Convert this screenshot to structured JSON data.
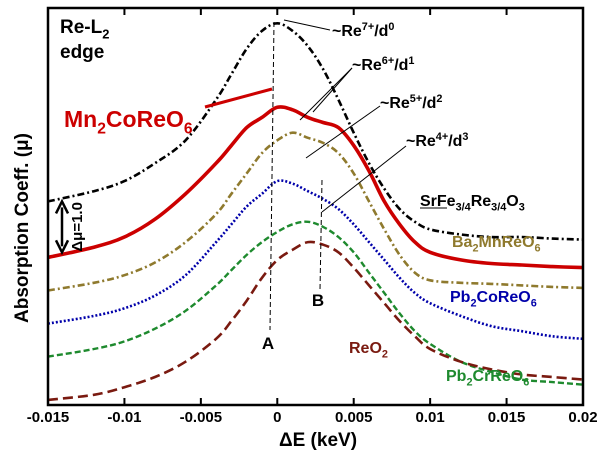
{
  "chart_data": {
    "type": "line",
    "title": "",
    "xlabel": "ΔE (keV)",
    "ylabel": "Absorption Coeff. (μ)",
    "xlim": [
      -0.015,
      0.02
    ],
    "ylim": [
      0,
      7.8
    ],
    "x_ticks": [
      -0.015,
      -0.01,
      -0.005,
      0,
      0.005,
      0.01,
      0.015,
      0.02
    ],
    "x_tick_labels": [
      "-0.015",
      "-0.01",
      "-0.005",
      "0",
      "0.005",
      "0.01",
      "0.015",
      "0.02"
    ],
    "y_ticks_shown": false,
    "grid": false,
    "edge_label": [
      "Re-L",
      "2",
      "edge"
    ],
    "scale_bar": {
      "label": "Δμ=1.0",
      "value": 1.0,
      "y_center": 3.5
    },
    "series": [
      {
        "name": "SrFe3/4Re3/4O3",
        "label": "SrFe",
        "label_parts": [
          {
            "t": "SrFe",
            "sub": false
          },
          {
            "t": "3/4",
            "sub": true
          },
          {
            "t": "Re",
            "sub": false
          },
          {
            "t": "3/4",
            "sub": true
          },
          {
            "t": "O",
            "sub": false
          },
          {
            "t": "3",
            "sub": true
          }
        ],
        "color": "#000000",
        "dash": "7,3,2,3",
        "width": 2.6,
        "x": [
          -0.015,
          -0.012,
          -0.01,
          -0.008,
          -0.006,
          -0.004,
          -0.003,
          -0.002,
          -0.001,
          0,
          0.001,
          0.002,
          0.003,
          0.004,
          0.005,
          0.006,
          0.007,
          0.008,
          0.009,
          0.01,
          0.012,
          0.014,
          0.016,
          0.018,
          0.02
        ],
        "y": [
          4.0,
          4.2,
          4.4,
          4.75,
          5.2,
          6.0,
          6.5,
          7.0,
          7.35,
          7.5,
          7.35,
          7.05,
          6.6,
          6.0,
          5.35,
          4.75,
          4.25,
          3.85,
          3.6,
          3.45,
          3.35,
          3.3,
          3.3,
          3.27,
          3.25
        ]
      },
      {
        "name": "Mn2CoReO6",
        "label": "Mn",
        "label_parts": [
          {
            "t": "Mn",
            "sub": false
          },
          {
            "t": "2",
            "sub": true
          },
          {
            "t": "CoReO",
            "sub": false
          },
          {
            "t": "6",
            "sub": true
          }
        ],
        "color": "#cc0000",
        "dash": "",
        "width": 3.6,
        "x": [
          -0.015,
          -0.012,
          -0.01,
          -0.008,
          -0.006,
          -0.004,
          -0.003,
          -0.002,
          -0.001,
          0,
          0.001,
          0.002,
          0.003,
          0.004,
          0.005,
          0.006,
          0.007,
          0.008,
          0.009,
          0.01,
          0.012,
          0.014,
          0.016,
          0.018,
          0.02
        ],
        "y": [
          2.9,
          3.1,
          3.3,
          3.65,
          4.15,
          4.75,
          5.1,
          5.45,
          5.65,
          5.85,
          5.8,
          5.65,
          5.55,
          5.45,
          5.1,
          4.6,
          4.0,
          3.55,
          3.2,
          3.0,
          2.85,
          2.78,
          2.75,
          2.72,
          2.7
        ]
      },
      {
        "name": "Ba2MnReO6",
        "label": "Ba",
        "label_parts": [
          {
            "t": "Ba",
            "sub": false
          },
          {
            "t": "2",
            "sub": true
          },
          {
            "t": "MnReO",
            "sub": false
          },
          {
            "t": "6",
            "sub": true
          }
        ],
        "color": "#8f7a2e",
        "dash": "7,3,2,3",
        "width": 2.6,
        "x": [
          -0.015,
          -0.012,
          -0.01,
          -0.008,
          -0.006,
          -0.004,
          -0.003,
          -0.002,
          -0.001,
          0,
          0.001,
          0.002,
          0.003,
          0.004,
          0.005,
          0.006,
          0.007,
          0.008,
          0.009,
          0.01,
          0.012,
          0.014,
          0.016,
          0.018,
          0.02
        ],
        "y": [
          2.25,
          2.4,
          2.55,
          2.8,
          3.2,
          3.75,
          4.15,
          4.55,
          4.95,
          5.2,
          5.35,
          5.25,
          5.15,
          4.95,
          4.55,
          4.0,
          3.45,
          2.95,
          2.6,
          2.45,
          2.4,
          2.38,
          2.35,
          2.32,
          2.3
        ]
      },
      {
        "name": "Pb2CoReO6",
        "label": "Pb",
        "label_parts": [
          {
            "t": "Pb",
            "sub": false
          },
          {
            "t": "2",
            "sub": true
          },
          {
            "t": "CoReO",
            "sub": false
          },
          {
            "t": "6",
            "sub": true
          }
        ],
        "color": "#0000aa",
        "dash": "2,2",
        "width": 2.6,
        "x": [
          -0.015,
          -0.012,
          -0.01,
          -0.008,
          -0.006,
          -0.004,
          -0.003,
          -0.002,
          -0.001,
          0,
          0.001,
          0.002,
          0.003,
          0.004,
          0.005,
          0.006,
          0.007,
          0.008,
          0.009,
          0.01,
          0.012,
          0.014,
          0.016,
          0.018,
          0.02
        ],
        "y": [
          1.6,
          1.75,
          1.9,
          2.15,
          2.55,
          3.2,
          3.55,
          3.9,
          4.15,
          4.4,
          4.35,
          4.2,
          4.05,
          3.85,
          3.55,
          3.2,
          2.85,
          2.5,
          2.2,
          2.0,
          1.75,
          1.55,
          1.45,
          1.35,
          1.3
        ]
      },
      {
        "name": "Pb2CrReO6",
        "label": "Pb",
        "label_parts": [
          {
            "t": "Pb",
            "sub": false
          },
          {
            "t": "2",
            "sub": true
          },
          {
            "t": "CrReO",
            "sub": false
          },
          {
            "t": "6",
            "sub": true
          }
        ],
        "color": "#1e8a2e",
        "dash": "6,3",
        "width": 2.4,
        "x": [
          -0.015,
          -0.012,
          -0.01,
          -0.008,
          -0.006,
          -0.004,
          -0.003,
          -0.002,
          -0.001,
          0,
          0.001,
          0.002,
          0.003,
          0.004,
          0.005,
          0.006,
          0.007,
          0.008,
          0.009,
          0.01,
          0.012,
          0.014,
          0.016,
          0.018,
          0.02
        ],
        "y": [
          0.95,
          1.1,
          1.25,
          1.5,
          1.85,
          2.35,
          2.65,
          2.95,
          3.2,
          3.4,
          3.55,
          3.6,
          3.5,
          3.3,
          3.0,
          2.6,
          2.2,
          1.8,
          1.45,
          1.2,
          0.85,
          0.65,
          0.5,
          0.45,
          0.4
        ]
      },
      {
        "name": "ReO2",
        "label": "ReO",
        "label_parts": [
          {
            "t": "ReO",
            "sub": false
          },
          {
            "t": "2",
            "sub": true
          }
        ],
        "color": "#7a1a10",
        "dash": "10,5",
        "width": 2.6,
        "x": [
          -0.015,
          -0.012,
          -0.01,
          -0.008,
          -0.006,
          -0.004,
          -0.003,
          -0.002,
          -0.001,
          0,
          0.001,
          0.002,
          0.003,
          0.004,
          0.005,
          0.006,
          0.007,
          0.008,
          0.009,
          0.01,
          0.012,
          0.014,
          0.016,
          0.018,
          0.02
        ],
        "y": [
          0.1,
          0.2,
          0.35,
          0.55,
          0.85,
          1.3,
          1.65,
          2.05,
          2.5,
          2.85,
          3.05,
          3.2,
          3.15,
          3.0,
          2.7,
          2.35,
          2.0,
          1.65,
          1.35,
          1.1,
          0.85,
          0.7,
          0.6,
          0.55,
          0.5
        ]
      }
    ],
    "markers": [
      {
        "label": "A",
        "x": 0.0
      },
      {
        "label": "B",
        "x": 0.003
      }
    ],
    "valence_labels": [
      {
        "base": "~Re",
        "sup": "7+",
        "d": "/d",
        "dsup": "0"
      },
      {
        "base": "~Re",
        "sup": "6+",
        "d": "/d",
        "dsup": "1"
      },
      {
        "base": "~Re",
        "sup": "5+",
        "d": "/d",
        "dsup": "2"
      },
      {
        "base": "~Re",
        "sup": "4+",
        "d": "/d",
        "dsup": "3"
      }
    ]
  }
}
